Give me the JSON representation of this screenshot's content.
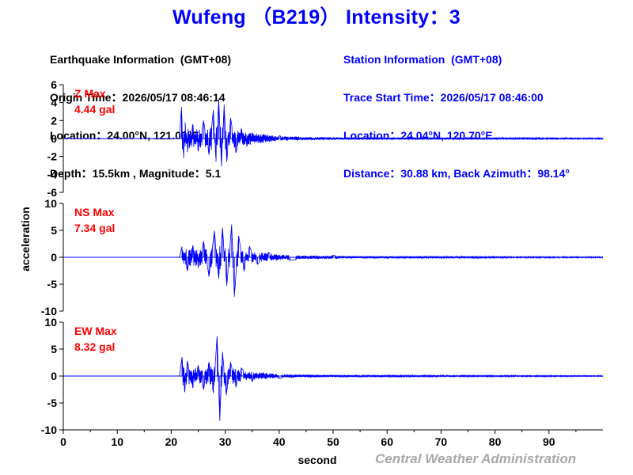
{
  "title": "Wufeng （B219） Intensity：3",
  "earthquake_info": {
    "heading": "Earthquake Information  (GMT+08)",
    "origin_time": "Origin Time：2026/05/17 08:46:14",
    "location": "Location：24.00°N, 121.00°E",
    "depth_magnitude": "Depth：15.5km , Magnitude：5.1"
  },
  "station_info": {
    "heading": "Station Information  (GMT+08)",
    "trace_start": "Trace Start Time：2026/05/17 08:46:00",
    "location": "Location：24.04°N, 120.70°E",
    "distance": "Distance：30.88 km, Back Azimuth：98.14°"
  },
  "credit": "Central Weather Administration",
  "colors": {
    "trace": "#0000ff",
    "title": "#0000ff",
    "max_label": "#ff0000",
    "axis": "#000000",
    "credit": "#a8a8a8"
  },
  "chart_data": {
    "type": "line",
    "xlabel": "second",
    "ylabel": "acceleration",
    "xlim": [
      0,
      100
    ],
    "x_ticks": [
      0,
      10,
      20,
      30,
      40,
      50,
      60,
      70,
      80,
      90
    ],
    "panels": [
      {
        "name": "Z",
        "max_label": "Z Max",
        "max_value": "4.44 gal",
        "ylim": [
          -6,
          6
        ],
        "y_ticks": [
          6,
          4,
          2,
          0,
          -2,
          -4,
          -6
        ],
        "x": [
          0,
          21.5,
          21.9,
          22.3,
          22.6,
          23.0,
          24.0,
          25.0,
          26.0,
          27.0,
          27.8,
          28.3,
          28.8,
          29.3,
          29.8,
          30.3,
          31.0,
          32.0,
          33.0,
          34.0,
          35.0,
          37.0,
          40.0,
          45.0,
          55.0,
          70.0,
          85.0,
          100.0
        ],
        "values": [
          0,
          0,
          3.5,
          -2.2,
          1.8,
          -1.5,
          1.6,
          -1.4,
          2.0,
          -1.8,
          3.2,
          -2.6,
          4.44,
          -3.1,
          3.8,
          -2.6,
          2.3,
          -1.6,
          1.1,
          -0.9,
          0.7,
          -0.45,
          0.3,
          -0.2,
          0.12,
          -0.08,
          0.05,
          0
        ],
        "noise_envelope": [
          [
            0,
            0
          ],
          [
            21.5,
            0
          ],
          [
            22.0,
            1.3
          ],
          [
            26.0,
            1.0
          ],
          [
            29.0,
            1.6
          ],
          [
            33.0,
            0.8
          ],
          [
            40.0,
            0.25
          ],
          [
            55.0,
            0.12
          ],
          [
            100.0,
            0.07
          ]
        ]
      },
      {
        "name": "NS",
        "max_label": "NS Max",
        "max_value": "7.34 gal",
        "ylim": [
          -10,
          10
        ],
        "y_ticks": [
          10,
          5,
          0,
          -5,
          -10
        ],
        "x": [
          0,
          21.5,
          22.0,
          23.0,
          24.0,
          25.0,
          26.0,
          27.0,
          28.0,
          28.8,
          29.5,
          30.3,
          31.2,
          31.7,
          32.5,
          33.5,
          34.5,
          36.0,
          38.0,
          42.0,
          50.0,
          60.0,
          75.0,
          100.0
        ],
        "values": [
          0,
          0,
          2.0,
          -2.5,
          2.2,
          -2.0,
          3.0,
          -3.6,
          4.9,
          -4.0,
          5.5,
          -5.3,
          6.1,
          -7.34,
          4.0,
          -2.6,
          2.0,
          -1.3,
          0.9,
          -0.55,
          0.35,
          -0.2,
          0.12,
          0
        ],
        "noise_envelope": [
          [
            0,
            0
          ],
          [
            21.5,
            0
          ],
          [
            22.0,
            1.6
          ],
          [
            26.0,
            1.6
          ],
          [
            30.0,
            2.4
          ],
          [
            35.0,
            1.0
          ],
          [
            42.0,
            0.4
          ],
          [
            60.0,
            0.18
          ],
          [
            100.0,
            0.1
          ]
        ]
      },
      {
        "name": "EW",
        "max_label": "EW Max",
        "max_value": "8.32 gal",
        "ylim": [
          -10,
          10
        ],
        "y_ticks": [
          10,
          5,
          0,
          -5,
          -10
        ],
        "x": [
          0,
          21.5,
          22.0,
          22.5,
          23.0,
          24.0,
          25.0,
          26.0,
          27.0,
          27.8,
          28.5,
          29.0,
          29.5,
          30.2,
          31.0,
          32.0,
          33.0,
          35.0,
          37.0,
          40.0,
          45.0,
          55.0,
          70.0,
          100.0
        ],
        "values": [
          0,
          0,
          3.5,
          -3.0,
          2.8,
          -2.2,
          2.0,
          -2.5,
          2.6,
          -3.2,
          7.4,
          -8.32,
          4.5,
          -3.6,
          2.6,
          -2.0,
          1.5,
          -1.0,
          0.7,
          -0.45,
          0.3,
          -0.18,
          0.1,
          0
        ],
        "noise_envelope": [
          [
            0,
            0
          ],
          [
            21.5,
            0
          ],
          [
            22.0,
            1.8
          ],
          [
            26.0,
            1.4
          ],
          [
            29.0,
            2.2
          ],
          [
            33.0,
            1.0
          ],
          [
            40.0,
            0.35
          ],
          [
            55.0,
            0.16
          ],
          [
            100.0,
            0.1
          ]
        ]
      }
    ]
  }
}
